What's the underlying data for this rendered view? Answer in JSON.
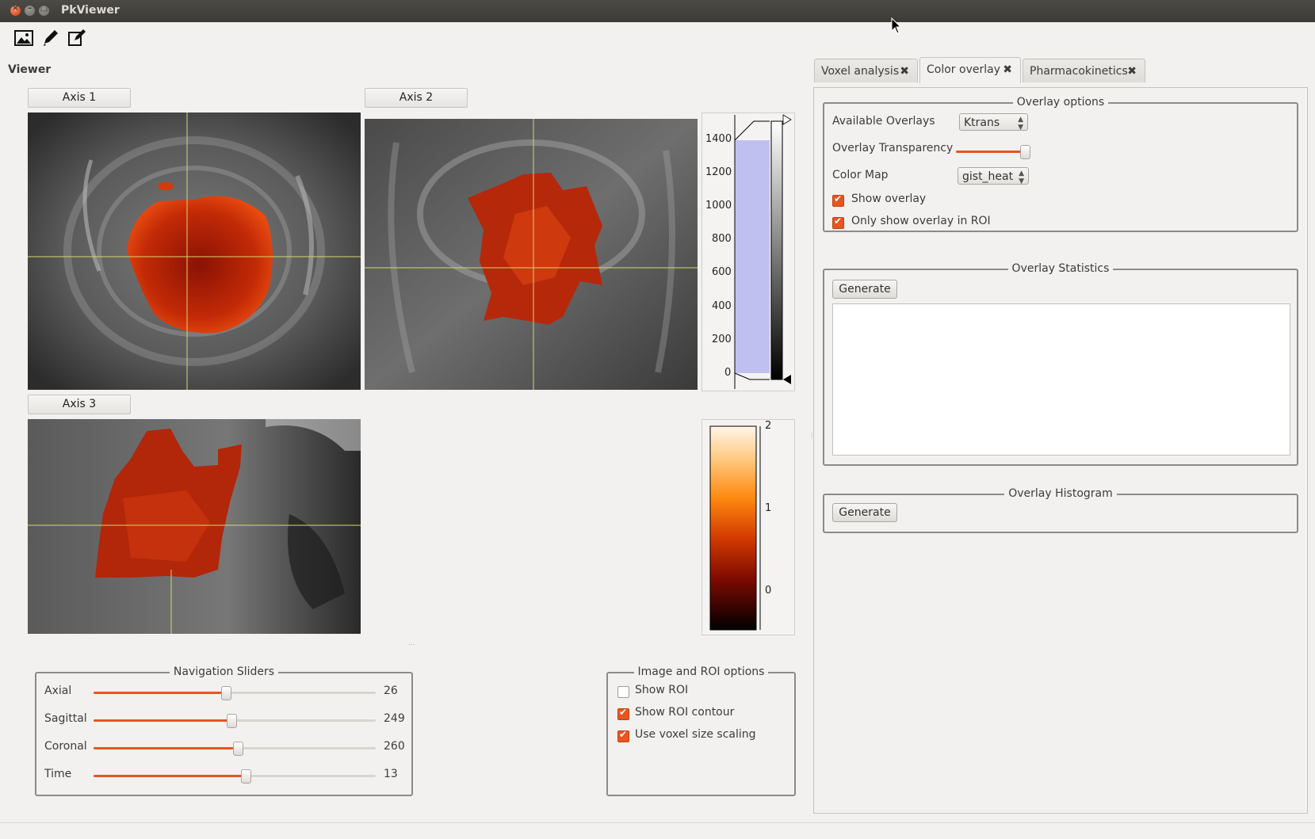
{
  "window": {
    "title": "PkViewer"
  },
  "toolbar": {
    "icons": [
      "image-icon",
      "pencil-icon",
      "edit-icon"
    ]
  },
  "viewer": {
    "label": "Viewer",
    "axis1": "Axis 1",
    "axis2": "Axis 2",
    "axis3": "Axis 3"
  },
  "histogram": {
    "ticks": [
      "1400",
      "1200",
      "1000",
      "800",
      "600",
      "400",
      "200",
      "0"
    ]
  },
  "colorbar": {
    "ticks": [
      "2",
      "1",
      "0"
    ]
  },
  "navigation": {
    "title": "Navigation Sliders",
    "sliders": [
      {
        "label": "Axial",
        "value": "26",
        "fraction": 0.47
      },
      {
        "label": "Sagittal",
        "value": "249",
        "fraction": 0.49
      },
      {
        "label": "Coronal",
        "value": "260",
        "fraction": 0.51
      },
      {
        "label": "Time",
        "value": "13",
        "fraction": 0.54
      }
    ]
  },
  "image_roi": {
    "title": "Image and ROI options",
    "options": [
      {
        "label": "Show ROI",
        "checked": false
      },
      {
        "label": "Show ROI contour",
        "checked": true
      },
      {
        "label": "Use voxel size scaling",
        "checked": true
      }
    ]
  },
  "tabs": [
    {
      "label": "Voxel analysis",
      "active": false
    },
    {
      "label": "Color overlay",
      "active": true
    },
    {
      "label": "Pharmacokinetics",
      "active": false
    }
  ],
  "overlay_options": {
    "title": "Overlay options",
    "available_label": "Available Overlays",
    "available_value": "Ktrans",
    "transparency_label": "Overlay Transparency",
    "transparency_fraction": 0.95,
    "colormap_label": "Color Map",
    "colormap_value": "gist_heat",
    "show_overlay": "Show overlay",
    "only_roi": "Only show overlay in ROI"
  },
  "overlay_statistics": {
    "title": "Overlay Statistics",
    "generate": "Generate"
  },
  "overlay_histogram": {
    "title": "Overlay Histogram",
    "generate": "Generate"
  },
  "colors": {
    "accent": "#e95420",
    "titlebar": "#3c3b37"
  }
}
